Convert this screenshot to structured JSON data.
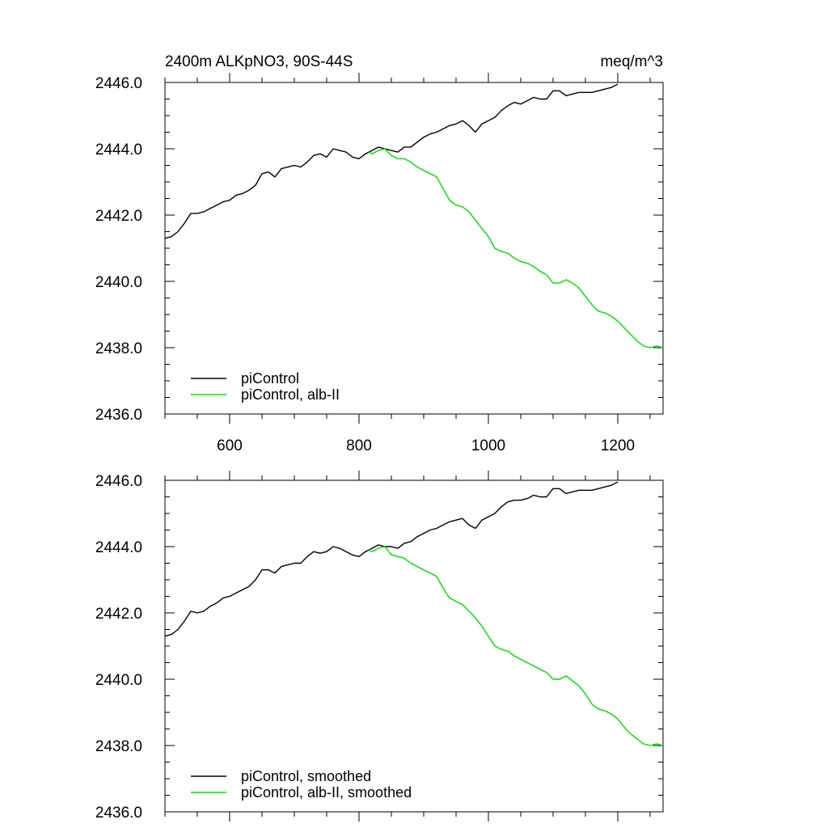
{
  "chart_data": [
    {
      "type": "line",
      "title": "2400m ALKpNO3, 90S-44S",
      "units": "meq/m^3",
      "xlabel": "",
      "ylabel": "",
      "xlim": [
        500,
        1270
      ],
      "ylim": [
        2436.0,
        2446.0
      ],
      "xticks": [
        600,
        800,
        1000,
        1200
      ],
      "xtick_labels": [
        "600",
        "800",
        "1000",
        "1200"
      ],
      "yticks": [
        2436.0,
        2438.0,
        2440.0,
        2442.0,
        2444.0,
        2446.0
      ],
      "ytick_labels": [
        "2436.0",
        "2438.0",
        "2440.0",
        "2442.0",
        "2444.0",
        "2446.0"
      ],
      "legend_position": "bottom-left",
      "series": [
        {
          "name": "piControl",
          "color": "#000000",
          "x": [
            500,
            510,
            520,
            530,
            540,
            550,
            560,
            570,
            580,
            590,
            600,
            610,
            620,
            630,
            640,
            650,
            660,
            670,
            680,
            690,
            700,
            710,
            720,
            730,
            740,
            750,
            760,
            770,
            780,
            790,
            800,
            810,
            820,
            830,
            840,
            850,
            860,
            870,
            880,
            890,
            900,
            910,
            920,
            930,
            940,
            950,
            960,
            970,
            980,
            990,
            1000,
            1010,
            1020,
            1030,
            1040,
            1050,
            1060,
            1070,
            1080,
            1090,
            1100,
            1110,
            1120,
            1130,
            1140,
            1150,
            1160,
            1170,
            1180,
            1190,
            1200
          ],
          "y": [
            2441.3,
            2441.35,
            2441.5,
            2441.75,
            2442.05,
            2442.05,
            2442.1,
            2442.2,
            2442.3,
            2442.4,
            2442.45,
            2442.6,
            2442.65,
            2442.75,
            2442.9,
            2443.25,
            2443.3,
            2443.15,
            2443.4,
            2443.45,
            2443.5,
            2443.45,
            2443.6,
            2443.8,
            2443.85,
            2443.75,
            2444.0,
            2443.95,
            2443.9,
            2443.75,
            2443.7,
            2443.85,
            2443.95,
            2444.05,
            2444.0,
            2443.95,
            2443.9,
            2444.05,
            2444.05,
            2444.2,
            2444.35,
            2444.45,
            2444.5,
            2444.6,
            2444.7,
            2444.75,
            2444.85,
            2444.7,
            2444.5,
            2444.75,
            2444.85,
            2444.95,
            2445.15,
            2445.3,
            2445.4,
            2445.35,
            2445.45,
            2445.55,
            2445.5,
            2445.5,
            2445.75,
            2445.75,
            2445.6,
            2445.65,
            2445.7,
            2445.7,
            2445.7,
            2445.75,
            2445.8,
            2445.85,
            2445.95
          ]
        },
        {
          "name": "piControl, alb-II",
          "color": "#00e000",
          "x": [
            815,
            820,
            830,
            840,
            850,
            860,
            870,
            880,
            890,
            900,
            910,
            920,
            930,
            940,
            950,
            960,
            970,
            980,
            990,
            1000,
            1010,
            1020,
            1030,
            1040,
            1050,
            1060,
            1070,
            1080,
            1090,
            1100,
            1110,
            1120,
            1130,
            1140,
            1150,
            1160,
            1170,
            1180,
            1190,
            1200,
            1210,
            1220,
            1230,
            1240,
            1250,
            1260,
            1270
          ],
          "y": [
            2443.9,
            2443.85,
            2443.95,
            2444.0,
            2443.8,
            2443.7,
            2443.7,
            2443.6,
            2443.45,
            2443.35,
            2443.25,
            2443.15,
            2442.8,
            2442.45,
            2442.3,
            2442.25,
            2442.1,
            2441.85,
            2441.6,
            2441.35,
            2441.0,
            2440.9,
            2440.85,
            2440.7,
            2440.6,
            2440.55,
            2440.45,
            2440.3,
            2440.2,
            2439.95,
            2439.95,
            2440.05,
            2439.95,
            2439.8,
            2439.55,
            2439.3,
            2439.1,
            2439.05,
            2438.95,
            2438.8,
            2438.6,
            2438.4,
            2438.2,
            2438.05,
            2438.0,
            2438.05,
            2438.0
          ]
        }
      ]
    },
    {
      "type": "line",
      "title": "",
      "xlabel": "",
      "ylabel": "",
      "xlim": [
        500,
        1270
      ],
      "ylim": [
        2436.0,
        2446.0
      ],
      "xticks": [
        600,
        800,
        1000,
        1200
      ],
      "xtick_labels": [],
      "yticks": [
        2436.0,
        2438.0,
        2440.0,
        2442.0,
        2444.0,
        2446.0
      ],
      "ytick_labels": [
        "2436.0",
        "2438.0",
        "2440.0",
        "2442.0",
        "2444.0",
        "2446.0"
      ],
      "legend_position": "bottom-left",
      "series": [
        {
          "name": "piControl, smoothed",
          "color": "#000000",
          "x": [
            500,
            510,
            520,
            530,
            540,
            550,
            560,
            570,
            580,
            590,
            600,
            610,
            620,
            630,
            640,
            650,
            660,
            670,
            680,
            690,
            700,
            710,
            720,
            730,
            740,
            750,
            760,
            770,
            780,
            790,
            800,
            810,
            820,
            830,
            840,
            850,
            860,
            870,
            880,
            890,
            900,
            910,
            920,
            930,
            940,
            950,
            960,
            970,
            980,
            990,
            1000,
            1010,
            1020,
            1030,
            1040,
            1050,
            1060,
            1070,
            1080,
            1090,
            1100,
            1110,
            1120,
            1130,
            1140,
            1150,
            1160,
            1170,
            1180,
            1190,
            1200
          ],
          "y": [
            2441.3,
            2441.35,
            2441.5,
            2441.75,
            2442.05,
            2442.0,
            2442.05,
            2442.2,
            2442.3,
            2442.45,
            2442.5,
            2442.6,
            2442.7,
            2442.8,
            2443.0,
            2443.3,
            2443.3,
            2443.2,
            2443.4,
            2443.45,
            2443.5,
            2443.5,
            2443.7,
            2443.85,
            2443.8,
            2443.85,
            2444.0,
            2443.95,
            2443.85,
            2443.75,
            2443.7,
            2443.85,
            2443.95,
            2444.05,
            2444.0,
            2444.0,
            2443.95,
            2444.1,
            2444.15,
            2444.3,
            2444.4,
            2444.5,
            2444.55,
            2444.65,
            2444.75,
            2444.8,
            2444.85,
            2444.65,
            2444.55,
            2444.8,
            2444.9,
            2445.0,
            2445.2,
            2445.35,
            2445.4,
            2445.4,
            2445.45,
            2445.55,
            2445.5,
            2445.5,
            2445.75,
            2445.75,
            2445.6,
            2445.65,
            2445.7,
            2445.7,
            2445.7,
            2445.75,
            2445.8,
            2445.85,
            2445.95
          ]
        },
        {
          "name": "piControl, alb-II, smoothed",
          "color": "#00e000",
          "x": [
            815,
            820,
            830,
            840,
            850,
            860,
            870,
            880,
            890,
            900,
            910,
            920,
            930,
            940,
            950,
            960,
            970,
            980,
            990,
            1000,
            1010,
            1020,
            1030,
            1040,
            1050,
            1060,
            1070,
            1080,
            1090,
            1100,
            1110,
            1120,
            1130,
            1140,
            1150,
            1160,
            1170,
            1180,
            1190,
            1200,
            1210,
            1220,
            1230,
            1240,
            1250,
            1260,
            1270
          ],
          "y": [
            2443.9,
            2443.85,
            2443.95,
            2444.0,
            2443.75,
            2443.7,
            2443.65,
            2443.5,
            2443.4,
            2443.3,
            2443.2,
            2443.1,
            2442.75,
            2442.45,
            2442.35,
            2442.25,
            2442.05,
            2441.85,
            2441.6,
            2441.3,
            2441.0,
            2440.9,
            2440.85,
            2440.7,
            2440.6,
            2440.5,
            2440.4,
            2440.3,
            2440.2,
            2440.0,
            2440.0,
            2440.1,
            2439.95,
            2439.8,
            2439.55,
            2439.25,
            2439.1,
            2439.05,
            2438.95,
            2438.8,
            2438.55,
            2438.35,
            2438.2,
            2438.05,
            2438.0,
            2438.05,
            2438.0
          ]
        }
      ]
    }
  ]
}
